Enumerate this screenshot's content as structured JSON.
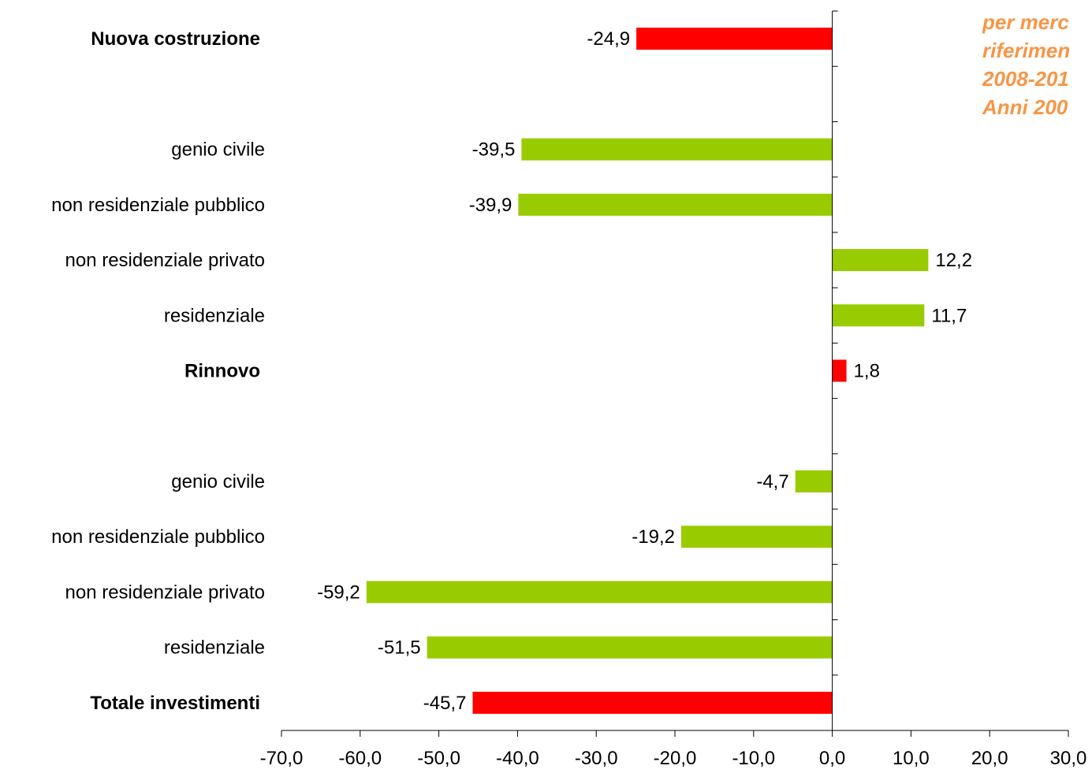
{
  "side_title": [
    "per merc",
    "riferimen",
    "2008-201",
    "Anni 200"
  ],
  "colors": {
    "section_bar": "#ff0000",
    "item_bar": "#99cc00",
    "side_title": "#f79646",
    "axis": "#000000"
  },
  "chart_data": {
    "type": "bar",
    "orientation": "horizontal",
    "xlim": [
      -70,
      30
    ],
    "xticks": [
      "-70,0",
      "-60,0",
      "-50,0",
      "-40,0",
      "-30,0",
      "-20,0",
      "-10,0",
      "0,0",
      "10,0",
      "20,0",
      "30,0"
    ],
    "grid": false,
    "rows": [
      {
        "label": "Nuova costruzione",
        "value": -24.9,
        "value_label": "-24,9",
        "bold": true
      },
      {
        "label": "",
        "value": null,
        "value_label": "",
        "bold": false
      },
      {
        "label": "genio civile",
        "value": -39.5,
        "value_label": "-39,5",
        "bold": false
      },
      {
        "label": "non residenziale pubblico",
        "value": -39.9,
        "value_label": "-39,9",
        "bold": false
      },
      {
        "label": "non residenziale privato",
        "value": 12.2,
        "value_label": "12,2",
        "bold": false
      },
      {
        "label": "residenziale",
        "value": 11.7,
        "value_label": "11,7",
        "bold": false
      },
      {
        "label": "Rinnovo",
        "value": 1.8,
        "value_label": "1,8",
        "bold": true
      },
      {
        "label": "",
        "value": null,
        "value_label": "",
        "bold": false
      },
      {
        "label": "genio civile",
        "value": -4.7,
        "value_label": "-4,7",
        "bold": false
      },
      {
        "label": "non residenziale pubblico",
        "value": -19.2,
        "value_label": "-19,2",
        "bold": false
      },
      {
        "label": "non residenziale privato",
        "value": -59.2,
        "value_label": "-59,2",
        "bold": false
      },
      {
        "label": "residenziale",
        "value": -51.5,
        "value_label": "-51,5",
        "bold": false
      },
      {
        "label": "Totale investimenti",
        "value": -45.7,
        "value_label": "-45,7",
        "bold": true
      }
    ]
  }
}
